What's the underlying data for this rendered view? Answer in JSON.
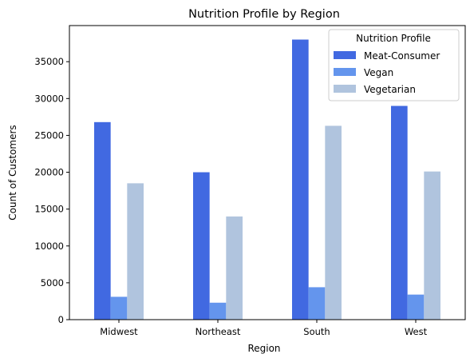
{
  "chart_data": {
    "type": "bar",
    "title": "Nutrition Profile by Region",
    "xlabel": "Region",
    "ylabel": "Count of Customers",
    "categories": [
      "Midwest",
      "Northeast",
      "South",
      "West"
    ],
    "series": [
      {
        "name": "Meat-Consumer",
        "color": "#4169e1",
        "values": [
          26800,
          20000,
          38000,
          29000
        ]
      },
      {
        "name": "Vegan",
        "color": "#6495ed",
        "values": [
          3100,
          2300,
          4400,
          3400
        ]
      },
      {
        "name": "Vegetarian",
        "color": "#b0c4de",
        "values": [
          18500,
          14000,
          26300,
          20100
        ]
      }
    ],
    "ylim": [
      0,
      39900
    ],
    "yticks": [
      0,
      5000,
      10000,
      15000,
      20000,
      25000,
      30000,
      35000
    ],
    "ytick_labels": [
      "0",
      "5000",
      "10000",
      "15000",
      "20000",
      "25000",
      "30000",
      "35000"
    ],
    "grid": false,
    "legend": {
      "title": "Nutrition Profile",
      "placement": "top-right"
    }
  }
}
